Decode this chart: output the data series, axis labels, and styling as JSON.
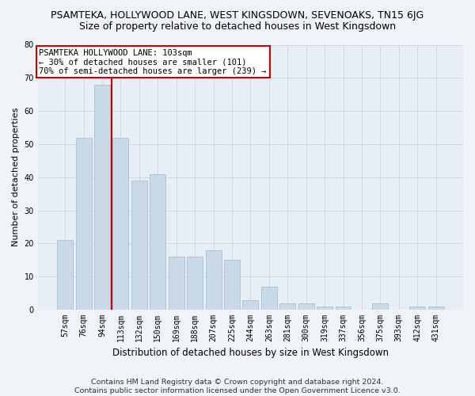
{
  "title": "PSAMTEKA, HOLLYWOOD LANE, WEST KINGSDOWN, SEVENOAKS, TN15 6JG",
  "subtitle": "Size of property relative to detached houses in West Kingsdown",
  "xlabel": "Distribution of detached houses by size in West Kingsdown",
  "ylabel": "Number of detached properties",
  "categories": [
    "57sqm",
    "76sqm",
    "94sqm",
    "113sqm",
    "132sqm",
    "150sqm",
    "169sqm",
    "188sqm",
    "207sqm",
    "225sqm",
    "244sqm",
    "263sqm",
    "281sqm",
    "300sqm",
    "319sqm",
    "337sqm",
    "356sqm",
    "375sqm",
    "393sqm",
    "412sqm",
    "431sqm"
  ],
  "values": [
    21,
    52,
    68,
    52,
    39,
    41,
    16,
    16,
    18,
    15,
    3,
    7,
    2,
    2,
    1,
    1,
    0,
    2,
    0,
    1,
    1
  ],
  "bar_color": "#c9d9e8",
  "bar_edge_color": "#aabfd4",
  "vline_index": 2,
  "vline_color": "#cc0000",
  "annotation_line1": "PSAMTEKA HOLLYWOOD LANE: 103sqm",
  "annotation_line2": "← 30% of detached houses are smaller (101)",
  "annotation_line3": "70% of semi-detached houses are larger (239) →",
  "annotation_box_facecolor": "#ffffff",
  "annotation_box_edgecolor": "#cc0000",
  "footer_line1": "Contains HM Land Registry data © Crown copyright and database right 2024.",
  "footer_line2": "Contains public sector information licensed under the Open Government Licence v3.0.",
  "ylim": [
    0,
    80
  ],
  "yticks": [
    0,
    10,
    20,
    30,
    40,
    50,
    60,
    70,
    80
  ],
  "grid_color": "#d0d8e0",
  "plot_bg_color": "#e8eef5",
  "fig_bg_color": "#f0f4f8",
  "title_fontsize": 9,
  "subtitle_fontsize": 9,
  "ylabel_fontsize": 8,
  "xlabel_fontsize": 8.5,
  "tick_fontsize": 7,
  "annotation_fontsize": 7.5,
  "footer_fontsize": 6.8
}
